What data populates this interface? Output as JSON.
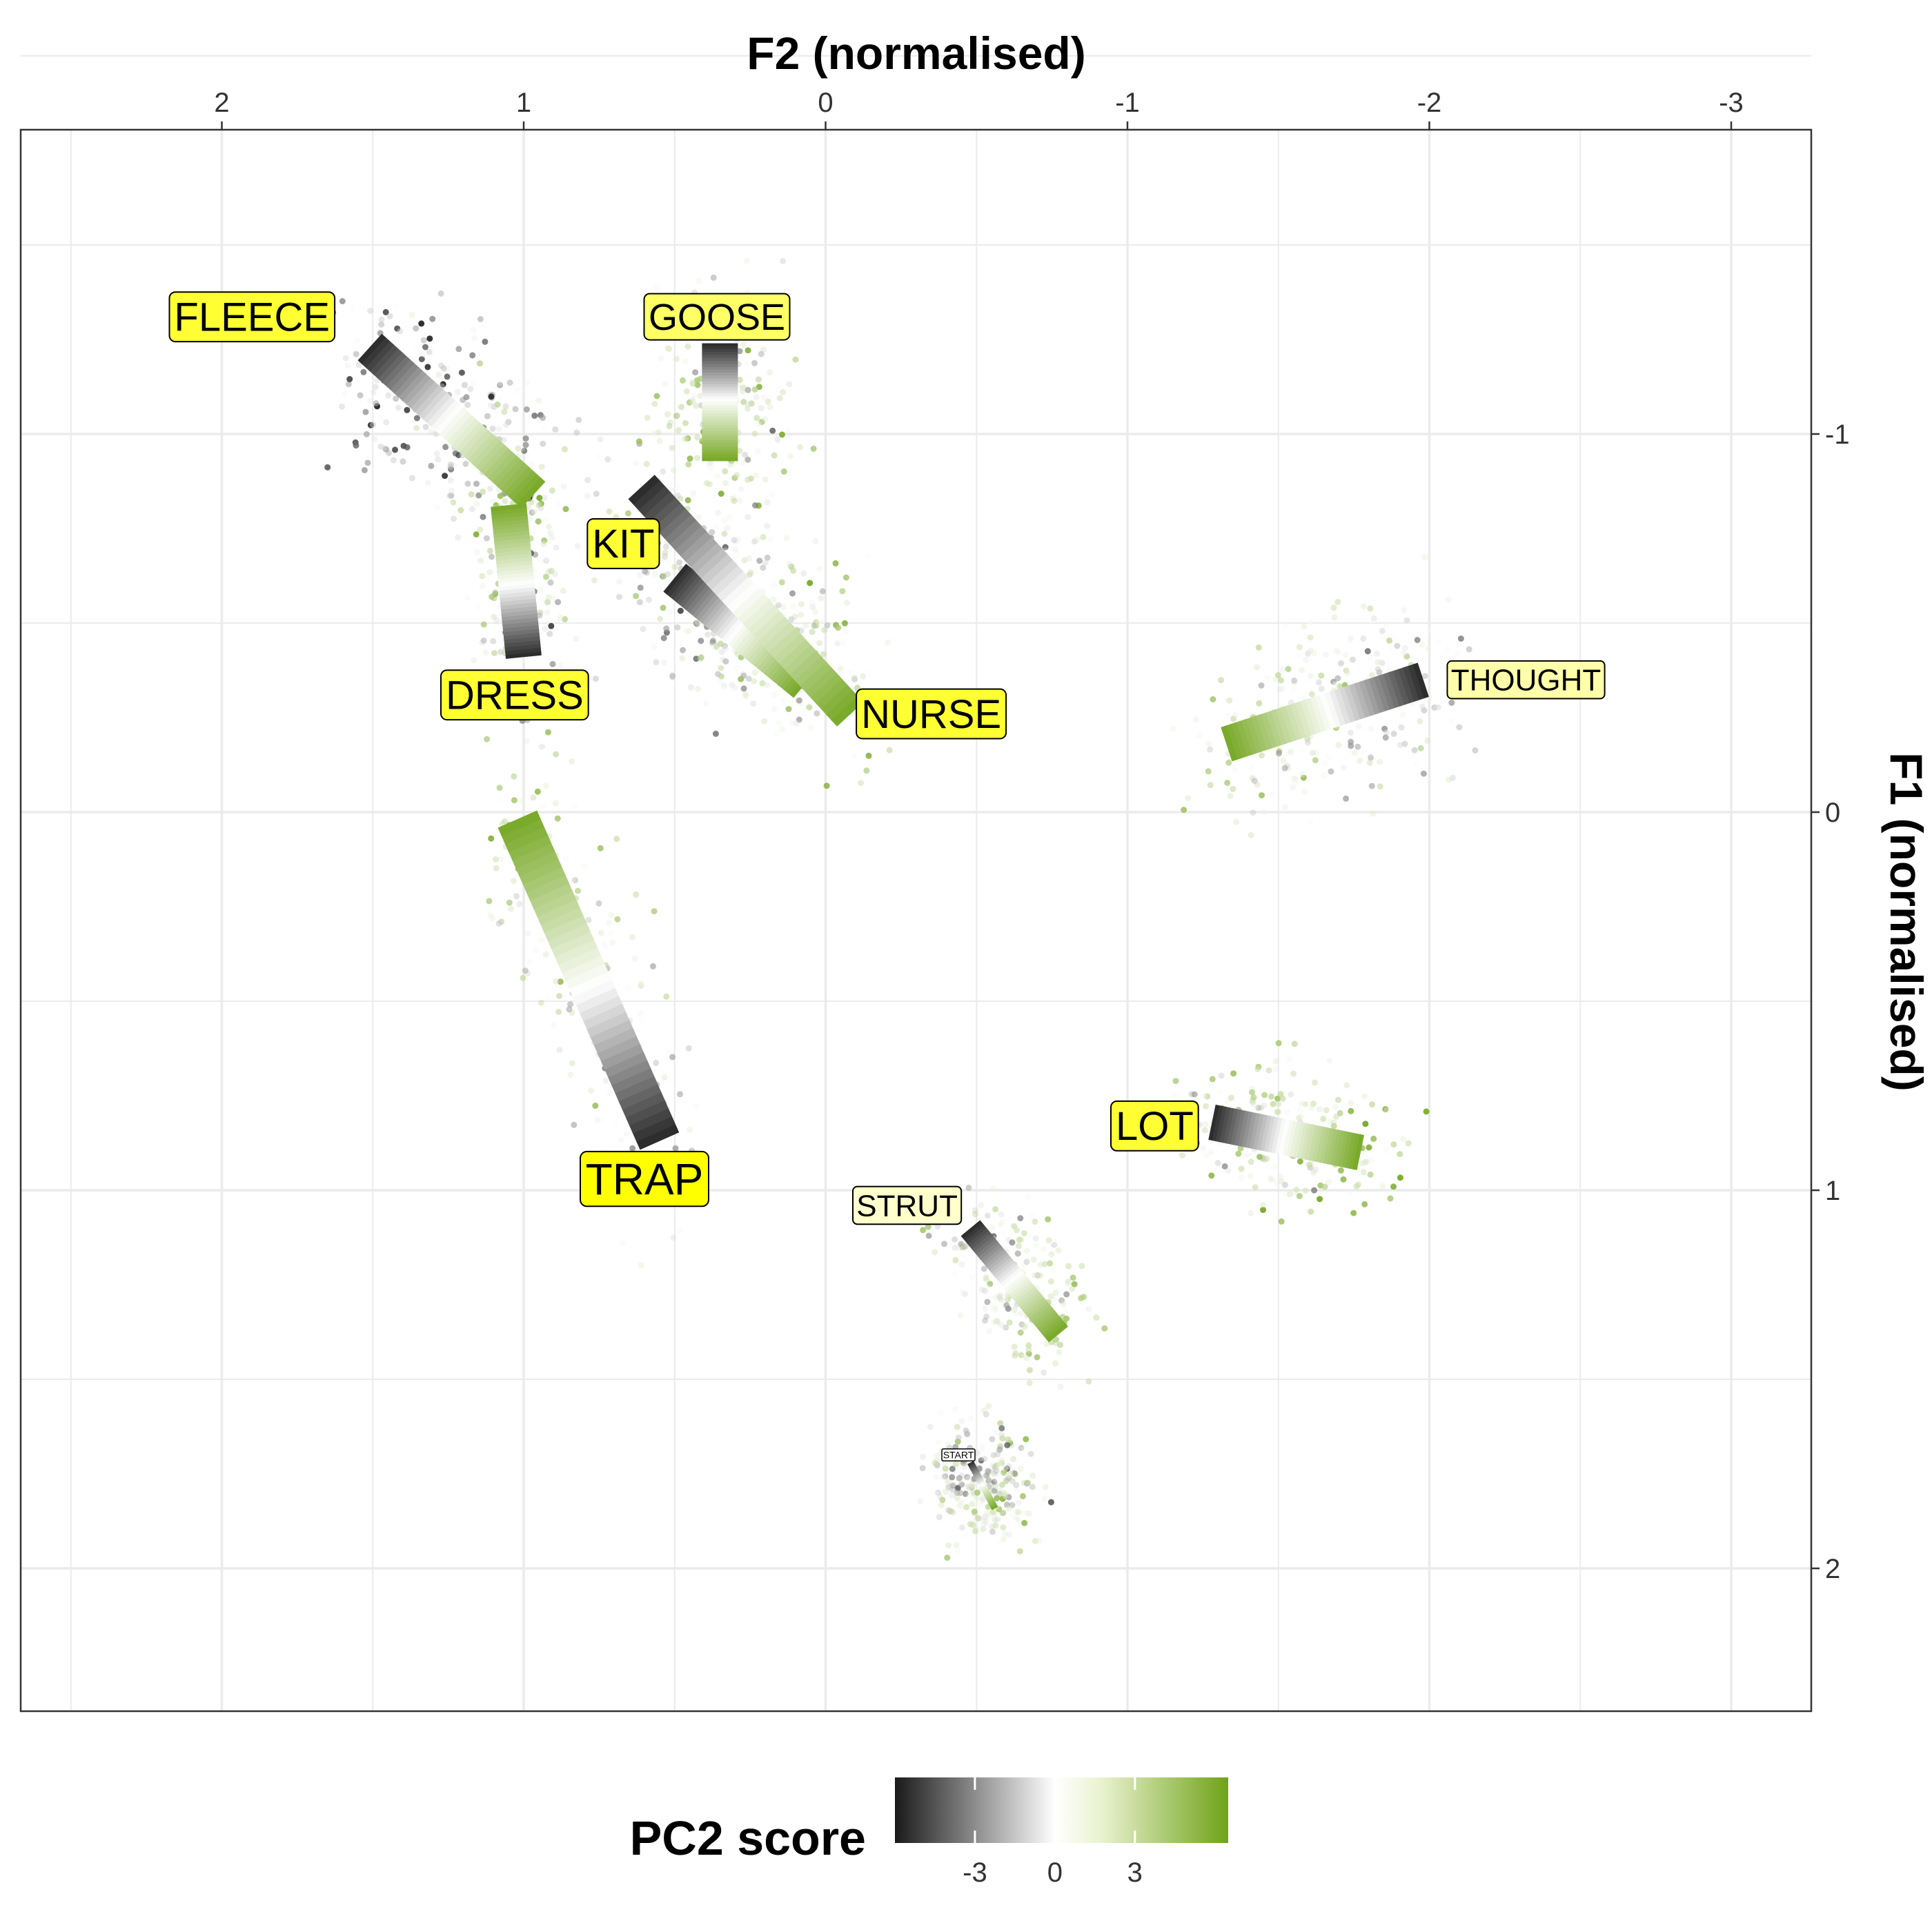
{
  "chart_data": {
    "type": "scatter",
    "x_axis": {
      "label": "F2 (normalised)",
      "position": "top",
      "reversed": true,
      "range": [
        2.5,
        -3.25
      ],
      "ticks": [
        2,
        1,
        0,
        -1,
        -2,
        -3
      ],
      "tick_labels": [
        "2",
        "1",
        "0",
        "-1",
        "-2",
        "-3"
      ]
    },
    "y_axis": {
      "label": "F1 (normalised)",
      "position": "right",
      "reversed": true,
      "range": [
        -2.35,
        2.35
      ],
      "ticks": [
        -1,
        0,
        1,
        2
      ],
      "tick_labels": [
        "-1",
        "0",
        "1",
        "2"
      ]
    },
    "grid": true,
    "colour_scale": {
      "title": "PC2 score",
      "breaks": [
        -3,
        0,
        3
      ],
      "break_labels": [
        "-3",
        "0",
        "3"
      ],
      "limits": [
        -6,
        6.5
      ],
      "low": "#1a1a1a",
      "mid": "#ffffff",
      "high": "#6fa318"
    },
    "legend_position": "bottom",
    "vowels": [
      {
        "name": "FLEECE",
        "label_size": "large",
        "label_fill": "#ffff33",
        "label_at": [
          1.9,
          -1.31
        ],
        "start": [
          1.51,
          -1.23
        ],
        "end": [
          0.97,
          -0.84
        ],
        "spread": [
          0.3,
          0.28
        ],
        "n_points": 320,
        "pc2_bias": -0.5
      },
      {
        "name": "GOOSE",
        "label_size": "medium",
        "label_fill": "#ffff66",
        "label_at": [
          0.36,
          -1.31
        ],
        "start": [
          0.35,
          -1.24
        ],
        "end": [
          0.35,
          -0.93
        ],
        "spread": [
          0.3,
          0.3
        ],
        "n_points": 260,
        "pc2_bias": 0.4
      },
      {
        "name": "KIT",
        "label_size": "large",
        "label_fill": "#ffff33",
        "label_at": [
          0.67,
          -0.71
        ],
        "start": [
          0.5,
          -0.62
        ],
        "end": [
          0.07,
          -0.34
        ],
        "spread": [
          0.3,
          0.25
        ],
        "n_points": 230,
        "pc2_bias": -0.2
      },
      {
        "name": "DRESS",
        "label_size": "large",
        "label_fill": "#ffff33",
        "label_at": [
          1.03,
          -0.31
        ],
        "start": [
          1.0,
          -0.41
        ],
        "end": [
          1.05,
          -0.81
        ],
        "spread": [
          0.2,
          0.3
        ],
        "n_points": 200,
        "pc2_bias": 0.3
      },
      {
        "name": "NURSE",
        "label_size": "large",
        "label_fill": "#ffff33",
        "label_at": [
          -0.35,
          -0.26
        ],
        "start": [
          0.61,
          -0.86
        ],
        "end": [
          -0.08,
          -0.26
        ],
        "spread": [
          0.35,
          0.3
        ],
        "n_points": 260,
        "pc2_bias": 0.5
      },
      {
        "name": "THOUGHT",
        "label_size": "small",
        "label_fill": "#ffffaa",
        "label_at": [
          -2.32,
          -0.35
        ],
        "start": [
          -1.98,
          -0.35
        ],
        "end": [
          -1.33,
          -0.18
        ],
        "spread": [
          0.28,
          0.32
        ],
        "n_points": 300,
        "pc2_bias": 0.2
      },
      {
        "name": "TRAP",
        "label_size": "xlarge",
        "label_fill": "#ffff00",
        "label_at": [
          0.6,
          0.97
        ],
        "start": [
          0.55,
          0.87
        ],
        "end": [
          1.02,
          0.02
        ],
        "spread": [
          0.25,
          0.35
        ],
        "n_points": 220,
        "pc2_bias": 0.4
      },
      {
        "name": "LOT",
        "label_size": "large",
        "label_fill": "#ffff33",
        "label_at": [
          -1.09,
          0.83
        ],
        "start": [
          -1.28,
          0.82
        ],
        "end": [
          -1.77,
          0.9
        ],
        "spread": [
          0.32,
          0.22
        ],
        "n_points": 260,
        "pc2_bias": 0.6
      },
      {
        "name": "STRUT",
        "label_size": "small",
        "label_fill": "#ffffcc",
        "label_at": [
          -0.27,
          1.04
        ],
        "start": [
          -0.48,
          1.1
        ],
        "end": [
          -0.77,
          1.38
        ],
        "spread": [
          0.22,
          0.2
        ],
        "n_points": 260,
        "pc2_bias": 0.3
      },
      {
        "name": "START",
        "label_size": "tiny",
        "label_fill": "#ffffff",
        "label_at": [
          -0.44,
          1.7
        ],
        "start": [
          -0.48,
          1.72
        ],
        "end": [
          -0.56,
          1.84
        ],
        "spread": [
          0.22,
          0.18
        ],
        "n_points": 300,
        "pc2_bias": 0.1
      }
    ]
  }
}
